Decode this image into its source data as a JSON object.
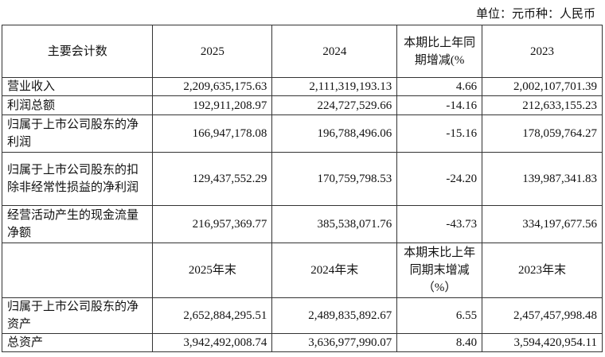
{
  "unit_label": "单位：元币种：人民币",
  "header1": {
    "item": "主要会计数",
    "c1": "2025",
    "c2": "2024",
    "c3": "本期比上年同期增减(%",
    "c4": "2023"
  },
  "rows1": [
    {
      "label": "营业收入",
      "v1": "2,209,635,175.63",
      "v2": "2,111,319,193.13",
      "chg": "4.66",
      "v3": "2,002,107,701.39"
    },
    {
      "label": "利润总额",
      "v1": "192,911,208.97",
      "v2": "224,727,529.66",
      "chg": "-14.16",
      "v3": "212,633,155.23"
    },
    {
      "label": "归属于上市公司股东的净利润",
      "v1": "166,947,178.08",
      "v2": "196,788,496.06",
      "chg": "-15.16",
      "v3": "178,059,764.27"
    },
    {
      "label": "归属于上市公司股东的扣除非经常性损益的净利润",
      "v1": "129,437,552.29",
      "v2": "170,759,798.53",
      "chg": "-24.20",
      "v3": "139,987,341.83"
    },
    {
      "label": "经营活动产生的现金流量净额",
      "v1": "216,957,369.77",
      "v2": "385,538,071.76",
      "chg": "-43.73",
      "v3": "334,197,677.56"
    }
  ],
  "header2": {
    "item": "",
    "c1": "2025年末",
    "c2": "2024年末",
    "c3": "本期末比上年同期末增减（%）",
    "c4": "2023年末"
  },
  "rows2": [
    {
      "label": "归属于上市公司股东的净资产",
      "v1": "2,652,884,295.51",
      "v2": "2,489,835,892.67",
      "chg": "6.55",
      "v3": "2,457,457,998.48"
    },
    {
      "label": "总资产",
      "v1": "3,942,492,008.74",
      "v2": "3,636,977,990.07",
      "chg": "8.40",
      "v3": "3,594,420,954.11"
    }
  ]
}
